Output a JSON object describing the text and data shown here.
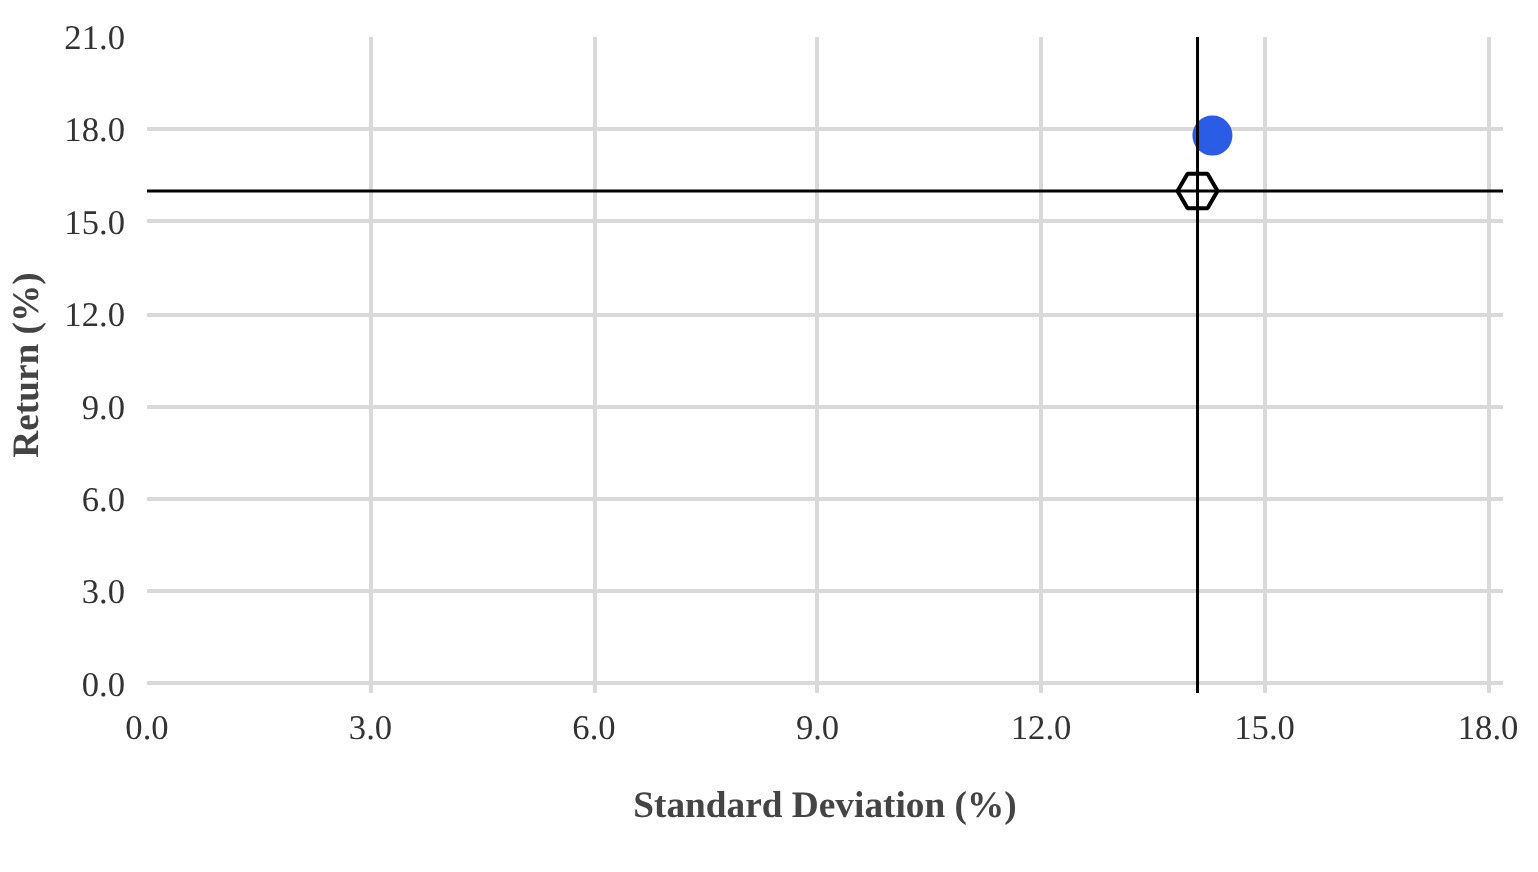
{
  "chart_data": {
    "type": "scatter",
    "xlabel": "Standard Deviation (%)",
    "ylabel": "Return (%)",
    "series": [
      {
        "color": "#2a5ce6",
        "marker": "circle",
        "x": [
          14.3
        ],
        "values": [
          17.8
        ]
      },
      {
        "color": "#ffffff",
        "x": [
          14.1
        ],
        "values": [
          16.0
        ]
      }
    ],
    "xlim": [
      0,
      18.2
    ],
    "ylim": [
      -0.3,
      21
    ],
    "xticks": [
      {
        "value": 0,
        "label": "0.0"
      },
      {
        "value": 3,
        "label": "3.0"
      },
      {
        "value": 6,
        "label": "6.0"
      },
      {
        "value": 9,
        "label": "9.0"
      },
      {
        "value": 12,
        "label": "12.0"
      },
      {
        "value": 15,
        "label": "15.0"
      },
      {
        "value": 18,
        "label": "18.0"
      }
    ],
    "yticks": [
      {
        "value": 0,
        "label": "0.0"
      },
      {
        "value": 3,
        "label": "3.0"
      },
      {
        "value": 6,
        "label": "6.0"
      },
      {
        "value": 9,
        "label": "9.0"
      },
      {
        "value": 12,
        "label": "12.0"
      },
      {
        "value": 15,
        "label": "15.0"
      },
      {
        "value": 18,
        "label": "18.0"
      },
      {
        "value": 21,
        "label": "21.0"
      }
    ],
    "ref_lines": [
      {
        "axis": "x",
        "value": 14.1,
        "color": "#000000"
      },
      {
        "axis": "y",
        "value": 16.0,
        "color": "#000000"
      }
    ],
    "grid": true
  }
}
